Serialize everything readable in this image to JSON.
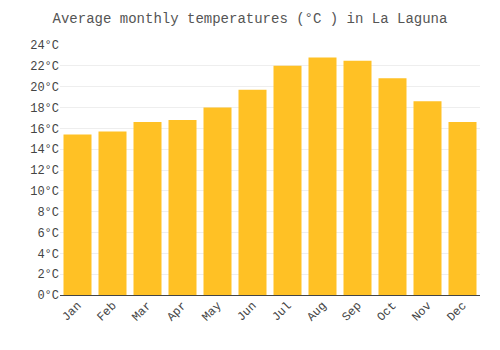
{
  "chart_data": {
    "type": "bar",
    "title": "Average monthly temperatures (°C ) in La Laguna",
    "categories": [
      "Jan",
      "Feb",
      "Mar",
      "Apr",
      "May",
      "Jun",
      "Jul",
      "Aug",
      "Sep",
      "Oct",
      "Nov",
      "Dec"
    ],
    "values": [
      15.4,
      15.7,
      16.6,
      16.8,
      18.0,
      19.7,
      22.0,
      22.8,
      22.5,
      20.8,
      18.6,
      16.6
    ],
    "color": "#FFC125",
    "ylim": [
      0,
      24
    ],
    "yticks": [
      {
        "value": 0,
        "label": "0°C"
      },
      {
        "value": 2,
        "label": "2°C"
      },
      {
        "value": 4,
        "label": "4°C"
      },
      {
        "value": 6,
        "label": "6°C"
      },
      {
        "value": 8,
        "label": "8°C"
      },
      {
        "value": 10,
        "label": "10°C"
      },
      {
        "value": 12,
        "label": "12°C"
      },
      {
        "value": 14,
        "label": "14°C"
      },
      {
        "value": 16,
        "label": "16°C"
      },
      {
        "value": 18,
        "label": "18°C"
      },
      {
        "value": 20,
        "label": "20°C"
      },
      {
        "value": 22,
        "label": "22°C"
      },
      {
        "value": 24,
        "label": "24°C"
      }
    ],
    "grid": true
  }
}
